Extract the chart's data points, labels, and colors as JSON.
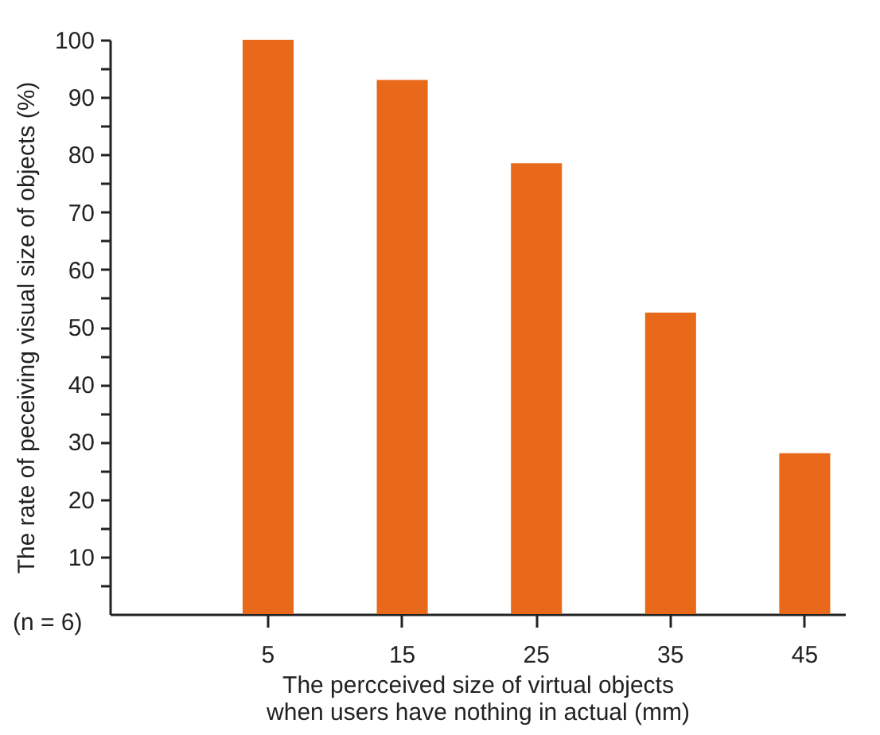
{
  "chart_data": {
    "type": "bar",
    "xlabel": "The percceived size of virtual objects when users have nothing in actual (mm)",
    "ylabel": "The rate of peceiving visual size of objects (%)",
    "categories": [
      "5",
      "15",
      "25",
      "35",
      "45"
    ],
    "values": [
      100,
      93,
      78.5,
      52.5,
      28
    ],
    "color": "#e8691a",
    "ylim": [
      0,
      100
    ],
    "yticks": [
      {
        "value": 5,
        "label": null
      },
      10,
      {
        "value": 15,
        "label": null
      },
      20,
      {
        "value": 25,
        "label": null
      },
      30,
      {
        "value": 35,
        "label": null
      },
      40,
      {
        "value": 45,
        "label": null
      },
      50,
      {
        "value": 55,
        "label": null
      },
      60,
      {
        "value": 65,
        "label": null
      },
      70,
      {
        "value": 75,
        "label": null
      },
      80,
      {
        "value": 85,
        "label": null
      },
      90,
      {
        "value": 95,
        "label": null
      },
      100
    ],
    "annotations": [
      "(n = 6)"
    ],
    "grid": false
  }
}
